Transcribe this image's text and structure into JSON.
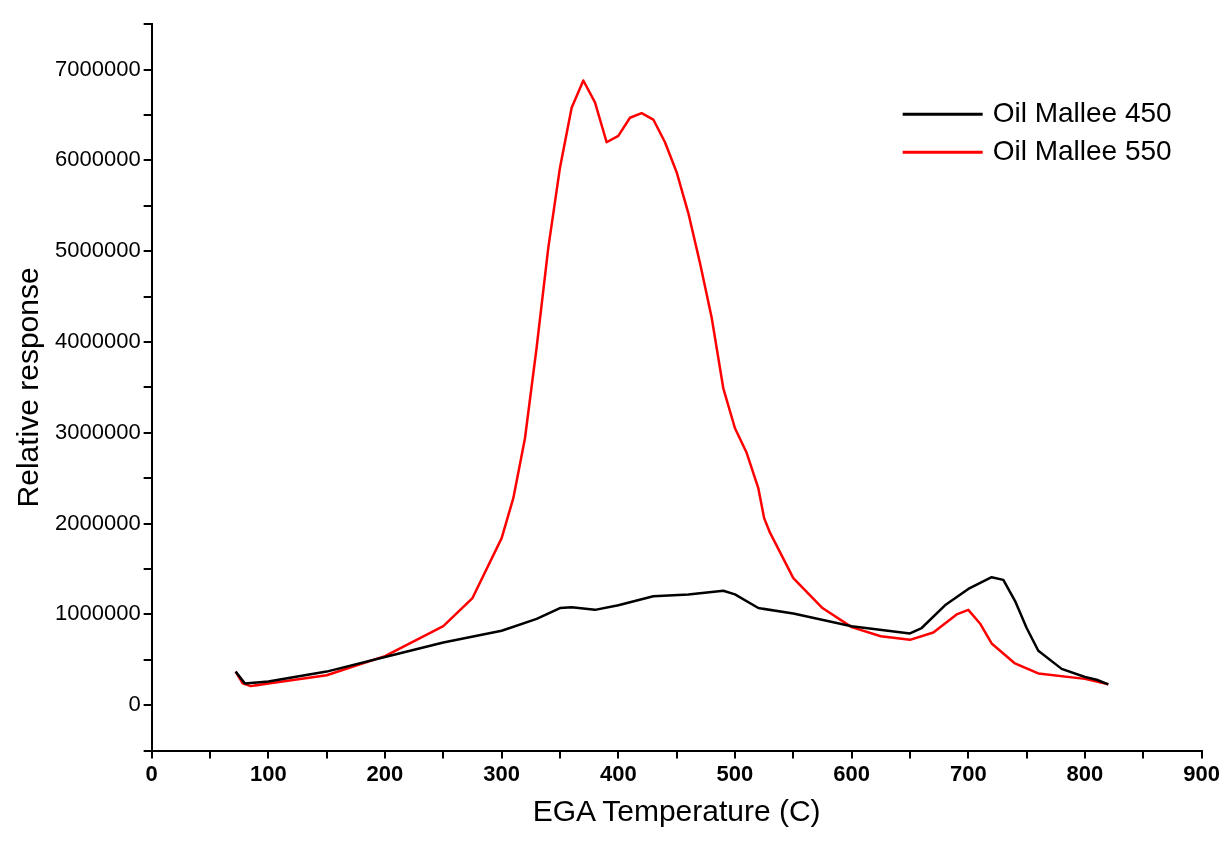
{
  "chart_data": {
    "type": "line",
    "xlabel": "EGA Temperature (C)",
    "ylabel": "Relative response",
    "xlim": [
      0,
      900
    ],
    "xticks": [
      0,
      {
        "value": 50,
        "label": null
      },
      100,
      {
        "value": 150,
        "label": null
      },
      200,
      {
        "value": 250,
        "label": null
      },
      300,
      {
        "value": 350,
        "label": null
      },
      400,
      {
        "value": 450,
        "label": null
      },
      500,
      {
        "value": 550,
        "label": null
      },
      600,
      {
        "value": 650,
        "label": null
      },
      700,
      {
        "value": 750,
        "label": null
      },
      800,
      {
        "value": 850,
        "label": null
      },
      900
    ],
    "ylim": [
      -500000,
      7500000
    ],
    "yticks": [
      {
        "value": -500000,
        "label": null
      },
      0,
      {
        "value": 500000,
        "label": null
      },
      1000000,
      {
        "value": 1500000,
        "label": null
      },
      2000000,
      {
        "value": 2500000,
        "label": null
      },
      3000000,
      {
        "value": 3500000,
        "label": null
      },
      4000000,
      {
        "value": 4500000,
        "label": null
      },
      5000000,
      {
        "value": 5500000,
        "label": null
      },
      6000000,
      {
        "value": 6500000,
        "label": null
      },
      7000000,
      {
        "value": 7500000,
        "label": null
      }
    ],
    "grid": false,
    "legend": "top right",
    "marker": "none",
    "line_style": "solid",
    "series": [
      {
        "name": "Oil Mallee 450",
        "color": "#000000",
        "x": [
          72,
          80,
          100,
          150,
          200,
          250,
          300,
          330,
          350,
          360,
          380,
          400,
          430,
          460,
          490,
          500,
          520,
          550,
          600,
          650,
          660,
          680,
          700,
          720,
          730,
          740,
          750,
          760,
          780,
          800,
          810,
          820
        ],
        "values": [
          370000,
          240000,
          260000,
          370000,
          530000,
          690000,
          820000,
          950000,
          1070000,
          1080000,
          1050000,
          1100000,
          1200000,
          1220000,
          1260000,
          1220000,
          1070000,
          1010000,
          870000,
          790000,
          850000,
          1100000,
          1280000,
          1410000,
          1380000,
          1150000,
          850000,
          600000,
          400000,
          310000,
          280000,
          230000
        ]
      },
      {
        "name": "Oil Mallee 550",
        "color": "#ff0000",
        "x": [
          72,
          78,
          85,
          100,
          150,
          200,
          250,
          275,
          300,
          310,
          320,
          330,
          340,
          350,
          360,
          370,
          380,
          390,
          400,
          410,
          420,
          430,
          440,
          450,
          460,
          470,
          480,
          490,
          500,
          510,
          520,
          525,
          530,
          550,
          575,
          600,
          625,
          650,
          670,
          690,
          700,
          710,
          720,
          740,
          760,
          800,
          820
        ],
        "values": [
          370000,
          240000,
          210000,
          240000,
          330000,
          540000,
          870000,
          1180000,
          1840000,
          2280000,
          2940000,
          3940000,
          5040000,
          5920000,
          6580000,
          6880000,
          6640000,
          6200000,
          6270000,
          6470000,
          6520000,
          6450000,
          6200000,
          5870000,
          5420000,
          4870000,
          4270000,
          3490000,
          3050000,
          2780000,
          2390000,
          2060000,
          1900000,
          1400000,
          1070000,
          860000,
          760000,
          720000,
          800000,
          1000000,
          1050000,
          900000,
          680000,
          460000,
          350000,
          290000,
          230000
        ]
      }
    ]
  }
}
